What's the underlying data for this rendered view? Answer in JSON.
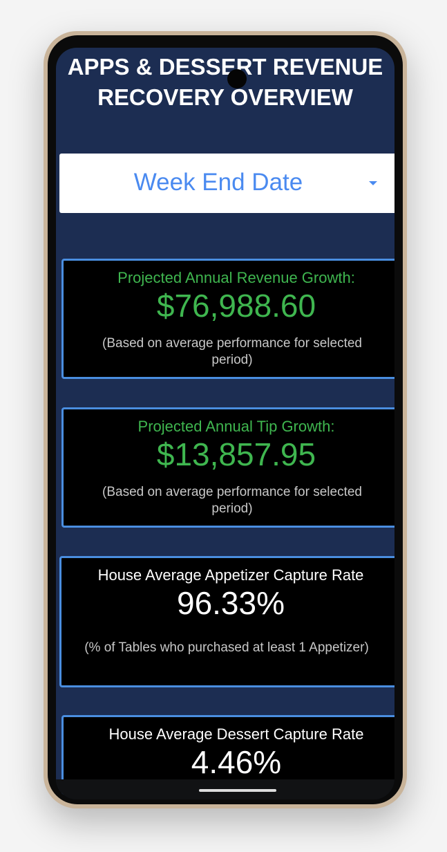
{
  "header": {
    "title_line1": "APPS & DESSERT REVENUE",
    "title_line2": "RECOVERY OVERVIEW"
  },
  "filter": {
    "label": "Week End Date",
    "icon": "caret-down-icon"
  },
  "cards": [
    {
      "heading": "Projected Annual Revenue Growth:",
      "value": "$76,988.60",
      "note": "(Based on average performance for selected period)"
    },
    {
      "heading": "Projected Annual Tip Growth:",
      "value": "$13,857.95",
      "note": "(Based on average performance for selected period)"
    },
    {
      "heading": "House Average Appetizer Capture Rate",
      "value": "96.33%",
      "note": "(% of Tables who purchased at least 1 Appetizer)"
    },
    {
      "heading": "House Average Dessert Capture Rate",
      "value": "4.46%"
    }
  ],
  "colors": {
    "background": "#1c2d52",
    "accent_green": "#3fb64f",
    "card_border": "#4a8ee0",
    "filter_text": "#4a8af0"
  }
}
